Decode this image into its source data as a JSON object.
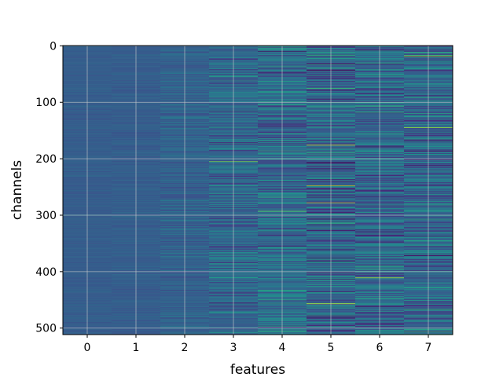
{
  "chart_data": {
    "type": "heatmap",
    "title": "",
    "xlabel": "features",
    "ylabel": "channels",
    "x_categories": [
      "0",
      "1",
      "2",
      "3",
      "4",
      "5",
      "6",
      "7"
    ],
    "y_ticks": [
      "0",
      "100",
      "200",
      "300",
      "400",
      "500"
    ],
    "y_tick_values": [
      0,
      100,
      200,
      300,
      400,
      500
    ],
    "n_rows": 512,
    "n_cols": 8,
    "colormap": "viridis",
    "grid": true,
    "column_means": [
      0.3,
      0.3,
      0.32,
      0.34,
      0.36,
      0.33,
      0.34,
      0.34
    ],
    "column_spreads": [
      0.03,
      0.04,
      0.08,
      0.16,
      0.2,
      0.24,
      0.22,
      0.22
    ],
    "highlights": [
      {
        "col": 5,
        "row": 176,
        "value": 0.95
      },
      {
        "col": 5,
        "row": 248,
        "value": 0.9
      },
      {
        "col": 5,
        "row": 278,
        "value": 0.92
      },
      {
        "col": 5,
        "row": 457,
        "value": 0.95
      },
      {
        "col": 6,
        "row": 411,
        "value": 0.9
      },
      {
        "col": 7,
        "row": 18,
        "value": 0.85
      },
      {
        "col": 7,
        "row": 145,
        "value": 0.88
      },
      {
        "col": 3,
        "row": 205,
        "value": 0.8
      },
      {
        "col": 4,
        "row": 293,
        "value": 0.78
      },
      {
        "col": 4,
        "row": 10,
        "value": 0.05
      },
      {
        "col": 6,
        "row": 32,
        "value": 0.08
      },
      {
        "col": 7,
        "row": 212,
        "value": 0.06
      }
    ],
    "colors": {
      "axis": "#000000",
      "grid": "#cccccc",
      "background": "#ffffff"
    }
  }
}
